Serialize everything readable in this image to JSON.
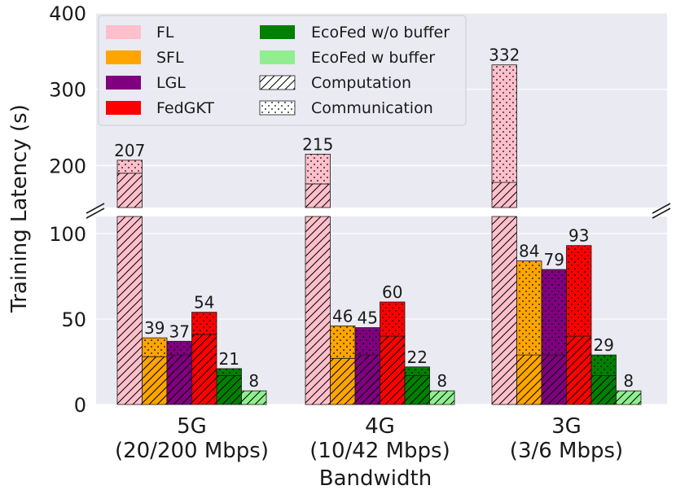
{
  "chart_data": {
    "type": "bar",
    "stacked_components": [
      "Computation",
      "Communication"
    ],
    "ylabel": "Training Latency (s)",
    "xlabel": "Bandwidth",
    "y_axis_break": true,
    "ylim_lower": [
      0,
      110
    ],
    "ylim_upper": [
      145,
      400
    ],
    "yticks": [
      0,
      50,
      100,
      200,
      300,
      400
    ],
    "categories": [
      {
        "line1": "5G",
        "line2": "(20/200 Mbps)"
      },
      {
        "line1": "4G",
        "line2": "(10/42 Mbps)"
      },
      {
        "line1": "3G",
        "line2": "(3/6 Mbps)"
      }
    ],
    "series": [
      {
        "name": "FL",
        "color": "#ffc0cb",
        "computation": [
          190,
          176,
          178
        ],
        "total": [
          207,
          215,
          332
        ],
        "labels": [
          "207",
          "215",
          "332"
        ]
      },
      {
        "name": "SFL",
        "color": "#ffa500",
        "computation": [
          28,
          27,
          29
        ],
        "total": [
          39,
          46,
          84
        ],
        "labels": [
          "39",
          "46",
          "84"
        ]
      },
      {
        "name": "LGL",
        "color": "#800080",
        "computation": [
          29,
          29,
          29
        ],
        "total": [
          37,
          45,
          79
        ],
        "labels": [
          "37",
          "45",
          "79"
        ]
      },
      {
        "name": "FedGKT",
        "color": "#ff0000",
        "computation": [
          41,
          40,
          40
        ],
        "total": [
          54,
          60,
          93
        ],
        "labels": [
          "54",
          "60",
          "93"
        ]
      },
      {
        "name": "EcoFed w/o buffer",
        "color": "#008000",
        "computation": [
          17,
          17,
          17
        ],
        "total": [
          21,
          22,
          29
        ],
        "labels": [
          "21",
          "22",
          "29"
        ]
      },
      {
        "name": "EcoFed w buffer",
        "color": "#90ee90",
        "computation": [
          8,
          8,
          8
        ],
        "total": [
          8,
          8,
          8
        ],
        "labels": [
          "8",
          "8",
          "8"
        ]
      }
    ],
    "legend": {
      "position": "top-left",
      "entries": [
        {
          "label": "FL",
          "kind": "color",
          "color": "#ffc0cb"
        },
        {
          "label": "SFL",
          "kind": "color",
          "color": "#ffa500"
        },
        {
          "label": "LGL",
          "kind": "color",
          "color": "#800080"
        },
        {
          "label": "FedGKT",
          "kind": "color",
          "color": "#ff0000"
        },
        {
          "label": "EcoFed w/o buffer",
          "kind": "color",
          "color": "#008000"
        },
        {
          "label": "EcoFed w buffer",
          "kind": "color",
          "color": "#90ee90"
        },
        {
          "label": "Computation",
          "kind": "hatch-diag"
        },
        {
          "label": "Communication",
          "kind": "hatch-dots"
        }
      ]
    }
  }
}
